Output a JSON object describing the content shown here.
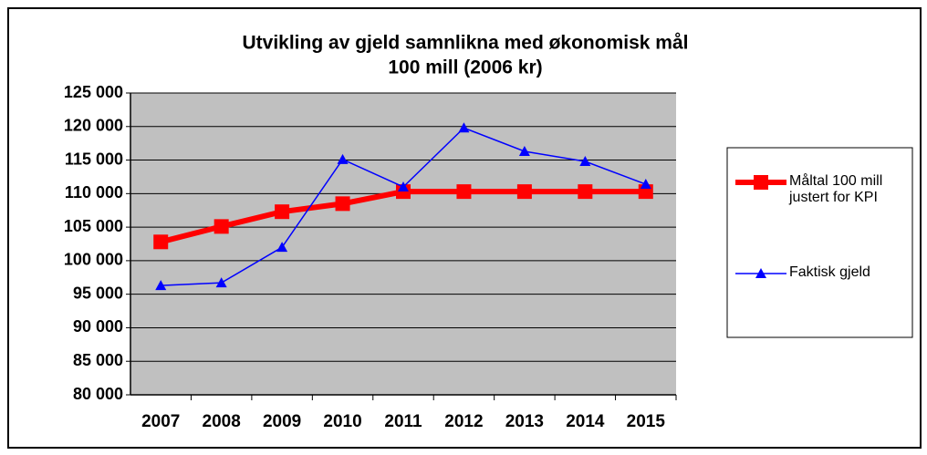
{
  "chart_data": {
    "type": "line",
    "title": [
      "Utvikling av gjeld samnlikna med økonomisk mål",
      "100 mill (2006 kr)"
    ],
    "categories": [
      "2007",
      "2008",
      "2009",
      "2010",
      "2011",
      "2012",
      "2013",
      "2014",
      "2015"
    ],
    "series": [
      {
        "name": "Måltal 100 mill justert for KPI",
        "color": "#ff0000",
        "values": [
          102800,
          105100,
          107300,
          108500,
          110300,
          110300,
          110300,
          110300,
          110300
        ]
      },
      {
        "name": "Faktisk gjeld",
        "color": "#0000ff",
        "values": [
          96300,
          96700,
          102000,
          115100,
          111000,
          119800,
          116300,
          114800,
          111400
        ]
      }
    ],
    "ylim": [
      80000,
      125000
    ],
    "yticks": [
      {
        "value": 80000,
        "label": "80 000"
      },
      {
        "value": 85000,
        "label": "85 000"
      },
      {
        "value": 90000,
        "label": "90 000"
      },
      {
        "value": 95000,
        "label": "95 000"
      },
      {
        "value": 100000,
        "label": "100 000"
      },
      {
        "value": 105000,
        "label": "105 000"
      },
      {
        "value": 110000,
        "label": "110 000"
      },
      {
        "value": 115000,
        "label": "115 000"
      },
      {
        "value": 120000,
        "label": "120 000"
      },
      {
        "value": 125000,
        "label": "125 000"
      }
    ],
    "grid": true,
    "plot_background": "#c0c0c0",
    "legend": "right"
  }
}
